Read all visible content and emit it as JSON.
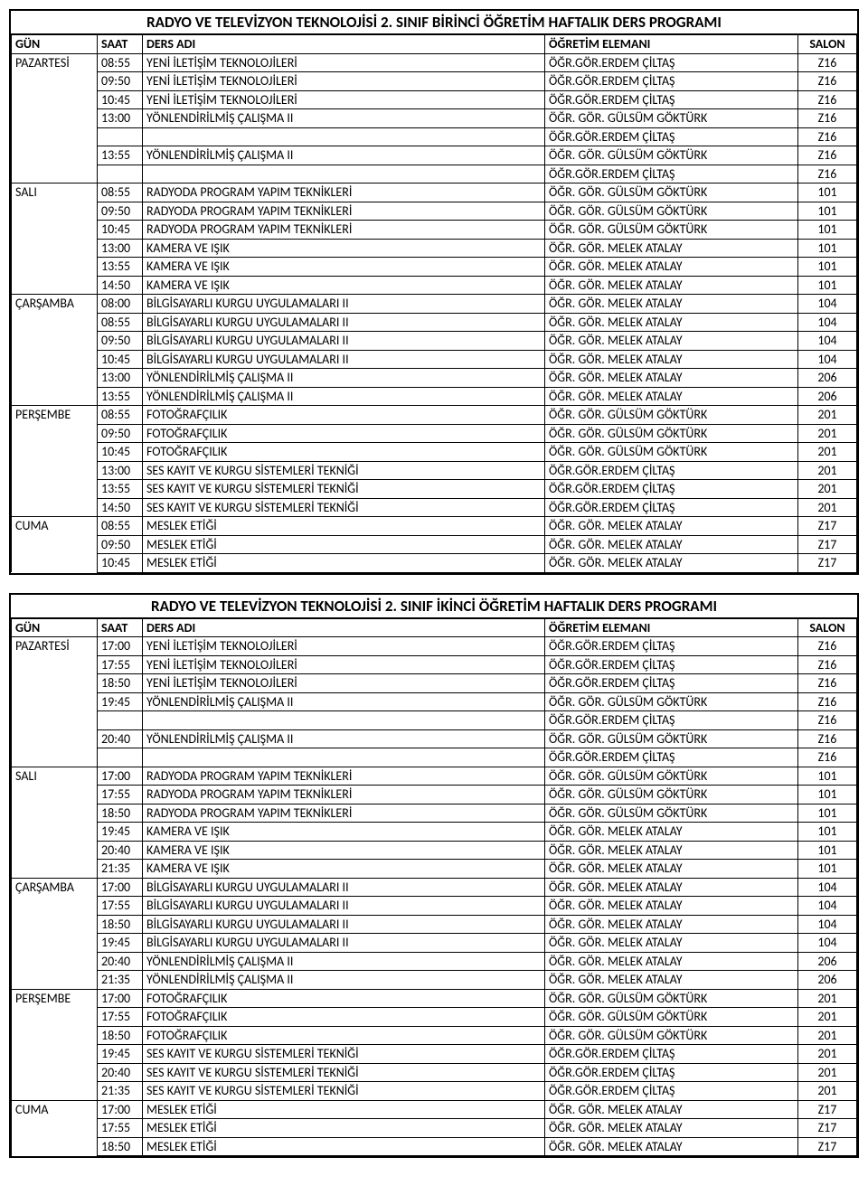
{
  "tables": [
    {
      "title": "RADYO VE TELEVİZYON TEKNOLOJİSİ 2. SINIF BİRİNCİ ÖĞRETİM HAFTALIK DERS PROGRAMI",
      "columns": [
        "GÜN",
        "SAAT",
        "DERS ADI",
        "ÖĞRETİM ELEMANI",
        "SALON"
      ],
      "rows": [
        {
          "gun": "PAZARTESİ",
          "saat": "08:55",
          "ders": "YENİ İLETİŞİM TEKNOLOJİLERİ",
          "ogr": "ÖĞR.GÖR.ERDEM ÇİLTAŞ",
          "salon": "Z16"
        },
        {
          "gun": "",
          "saat": "09:50",
          "ders": "YENİ İLETİŞİM TEKNOLOJİLERİ",
          "ogr": "ÖĞR.GÖR.ERDEM ÇİLTAŞ",
          "salon": "Z16"
        },
        {
          "gun": "",
          "saat": "10:45",
          "ders": "YENİ İLETİŞİM TEKNOLOJİLERİ",
          "ogr": "ÖĞR.GÖR.ERDEM ÇİLTAŞ",
          "salon": "Z16"
        },
        {
          "gun": "",
          "saat": "13:00",
          "ders": "YÖNLENDİRİLMİŞ ÇALIŞMA II",
          "ogr": "ÖĞR. GÖR. GÜLSÜM GÖKTÜRK",
          "salon": "Z16"
        },
        {
          "gun": "",
          "saat": "",
          "ders": "",
          "ogr": "ÖĞR.GÖR.ERDEM ÇİLTAŞ",
          "salon": "Z16"
        },
        {
          "gun": "",
          "saat": "13:55",
          "ders": "YÖNLENDİRİLMİŞ ÇALIŞMA II",
          "ogr": "ÖĞR. GÖR. GÜLSÜM GÖKTÜRK",
          "salon": "Z16"
        },
        {
          "gun": "",
          "saat": "",
          "ders": "",
          "ogr": "ÖĞR.GÖR.ERDEM ÇİLTAŞ",
          "salon": "Z16"
        },
        {
          "gun": "SALI",
          "saat": "08:55",
          "ders": "RADYODA PROGRAM YAPIM TEKNİKLERİ",
          "ogr": "ÖĞR. GÖR. GÜLSÜM GÖKTÜRK",
          "salon": "101"
        },
        {
          "gun": "",
          "saat": "09:50",
          "ders": "RADYODA PROGRAM YAPIM TEKNİKLERİ",
          "ogr": "ÖĞR. GÖR. GÜLSÜM GÖKTÜRK",
          "salon": "101"
        },
        {
          "gun": "",
          "saat": "10:45",
          "ders": "RADYODA PROGRAM YAPIM TEKNİKLERİ",
          "ogr": "ÖĞR. GÖR. GÜLSÜM GÖKTÜRK",
          "salon": "101"
        },
        {
          "gun": "",
          "saat": "13:00",
          "ders": "KAMERA VE IŞIK",
          "ogr": "ÖĞR. GÖR. MELEK ATALAY",
          "salon": "101"
        },
        {
          "gun": "",
          "saat": "13:55",
          "ders": "KAMERA VE IŞIK",
          "ogr": "ÖĞR. GÖR. MELEK ATALAY",
          "salon": "101"
        },
        {
          "gun": "",
          "saat": "14:50",
          "ders": "KAMERA VE IŞIK",
          "ogr": "ÖĞR. GÖR. MELEK ATALAY",
          "salon": "101"
        },
        {
          "gun": "ÇARŞAMBA",
          "saat": "08:00",
          "ders": "BİLGİSAYARLI KURGU UYGULAMALARI II",
          "ogr": "ÖĞR. GÖR. MELEK ATALAY",
          "salon": "104"
        },
        {
          "gun": "",
          "saat": "08:55",
          "ders": "BİLGİSAYARLI KURGU UYGULAMALARI II",
          "ogr": "ÖĞR. GÖR. MELEK ATALAY",
          "salon": "104"
        },
        {
          "gun": "",
          "saat": "09:50",
          "ders": "BİLGİSAYARLI KURGU UYGULAMALARI II",
          "ogr": "ÖĞR. GÖR. MELEK ATALAY",
          "salon": "104"
        },
        {
          "gun": "",
          "saat": "10:45",
          "ders": "BİLGİSAYARLI KURGU UYGULAMALARI II",
          "ogr": "ÖĞR. GÖR. MELEK ATALAY",
          "salon": "104"
        },
        {
          "gun": "",
          "saat": "13:00",
          "ders": "YÖNLENDİRİLMİŞ ÇALIŞMA II",
          "ogr": "ÖĞR. GÖR. MELEK ATALAY",
          "salon": "206"
        },
        {
          "gun": "",
          "saat": "13:55",
          "ders": "YÖNLENDİRİLMİŞ ÇALIŞMA II",
          "ogr": "ÖĞR. GÖR. MELEK ATALAY",
          "salon": "206"
        },
        {
          "gun": "PERŞEMBE",
          "saat": "08:55",
          "ders": "FOTOĞRAFÇILIK",
          "ogr": "ÖĞR. GÖR. GÜLSÜM GÖKTÜRK",
          "salon": "201"
        },
        {
          "gun": "",
          "saat": "09:50",
          "ders": "FOTOĞRAFÇILIK",
          "ogr": "ÖĞR. GÖR. GÜLSÜM GÖKTÜRK",
          "salon": "201"
        },
        {
          "gun": "",
          "saat": "10:45",
          "ders": "FOTOĞRAFÇILIK",
          "ogr": "ÖĞR. GÖR. GÜLSÜM GÖKTÜRK",
          "salon": "201"
        },
        {
          "gun": "",
          "saat": "13:00",
          "ders": "SES KAYIT VE KURGU SİSTEMLERİ TEKNİĞİ",
          "ogr": "ÖĞR.GÖR.ERDEM ÇİLTAŞ",
          "salon": "201"
        },
        {
          "gun": "",
          "saat": "13:55",
          "ders": "SES KAYIT VE KURGU SİSTEMLERİ TEKNİĞİ",
          "ogr": "ÖĞR.GÖR.ERDEM ÇİLTAŞ",
          "salon": "201"
        },
        {
          "gun": "",
          "saat": "14:50",
          "ders": "SES KAYIT VE KURGU SİSTEMLERİ TEKNİĞİ",
          "ogr": "ÖĞR.GÖR.ERDEM ÇİLTAŞ",
          "salon": "201"
        },
        {
          "gun": "CUMA",
          "saat": "08:55",
          "ders": "MESLEK ETİĞİ",
          "ogr": "ÖĞR. GÖR. MELEK ATALAY",
          "salon": "Z17"
        },
        {
          "gun": "",
          "saat": "09:50",
          "ders": "MESLEK ETİĞİ",
          "ogr": "ÖĞR. GÖR. MELEK ATALAY",
          "salon": "Z17"
        },
        {
          "gun": "",
          "saat": "10:45",
          "ders": "MESLEK ETİĞİ",
          "ogr": "ÖĞR. GÖR. MELEK ATALAY",
          "salon": "Z17"
        }
      ]
    },
    {
      "title": "RADYO VE TELEVİZYON TEKNOLOJİSİ 2. SINIF İKİNCİ ÖĞRETİM HAFTALIK DERS PROGRAMI",
      "columns": [
        "GÜN",
        "SAAT",
        "DERS ADI",
        "ÖĞRETİM ELEMANI",
        "SALON"
      ],
      "rows": [
        {
          "gun": "PAZARTESİ",
          "saat": "17:00",
          "ders": "YENİ İLETİŞİM TEKNOLOJİLERİ",
          "ogr": "ÖĞR.GÖR.ERDEM ÇİLTAŞ",
          "salon": "Z16"
        },
        {
          "gun": "",
          "saat": "17:55",
          "ders": "YENİ İLETİŞİM TEKNOLOJİLERİ",
          "ogr": "ÖĞR.GÖR.ERDEM ÇİLTAŞ",
          "salon": "Z16"
        },
        {
          "gun": "",
          "saat": "18:50",
          "ders": "YENİ İLETİŞİM TEKNOLOJİLERİ",
          "ogr": "ÖĞR.GÖR.ERDEM ÇİLTAŞ",
          "salon": "Z16"
        },
        {
          "gun": "",
          "saat": "19:45",
          "ders": "YÖNLENDİRİLMİŞ ÇALIŞMA II",
          "ogr": "ÖĞR. GÖR. GÜLSÜM GÖKTÜRK",
          "salon": "Z16"
        },
        {
          "gun": "",
          "saat": "",
          "ders": "",
          "ogr": "ÖĞR.GÖR.ERDEM ÇİLTAŞ",
          "salon": "Z16"
        },
        {
          "gun": "",
          "saat": "20:40",
          "ders": "YÖNLENDİRİLMİŞ ÇALIŞMA II",
          "ogr": "ÖĞR. GÖR. GÜLSÜM GÖKTÜRK",
          "salon": "Z16"
        },
        {
          "gun": "",
          "saat": "",
          "ders": "",
          "ogr": "ÖĞR.GÖR.ERDEM ÇİLTAŞ",
          "salon": "Z16"
        },
        {
          "gun": "SALI",
          "saat": "17:00",
          "ders": "RADYODA PROGRAM YAPIM TEKNİKLERİ",
          "ogr": "ÖĞR. GÖR. GÜLSÜM GÖKTÜRK",
          "salon": "101"
        },
        {
          "gun": "",
          "saat": "17:55",
          "ders": "RADYODA PROGRAM YAPIM TEKNİKLERİ",
          "ogr": "ÖĞR. GÖR. GÜLSÜM GÖKTÜRK",
          "salon": "101"
        },
        {
          "gun": "",
          "saat": "18:50",
          "ders": "RADYODA PROGRAM YAPIM TEKNİKLERİ",
          "ogr": "ÖĞR. GÖR. GÜLSÜM GÖKTÜRK",
          "salon": "101"
        },
        {
          "gun": "",
          "saat": "19:45",
          "ders": "KAMERA VE IŞIK",
          "ogr": "ÖĞR. GÖR. MELEK ATALAY",
          "salon": "101"
        },
        {
          "gun": "",
          "saat": "20:40",
          "ders": "KAMERA VE IŞIK",
          "ogr": "ÖĞR. GÖR. MELEK ATALAY",
          "salon": "101"
        },
        {
          "gun": "",
          "saat": "21:35",
          "ders": "KAMERA VE IŞIK",
          "ogr": "ÖĞR. GÖR. MELEK ATALAY",
          "salon": "101"
        },
        {
          "gun": "ÇARŞAMBA",
          "saat": "17:00",
          "ders": "BİLGİSAYARLI KURGU UYGULAMALARI II",
          "ogr": "ÖĞR. GÖR. MELEK ATALAY",
          "salon": "104"
        },
        {
          "gun": "",
          "saat": "17:55",
          "ders": "BİLGİSAYARLI KURGU UYGULAMALARI II",
          "ogr": "ÖĞR. GÖR. MELEK ATALAY",
          "salon": "104"
        },
        {
          "gun": "",
          "saat": "18:50",
          "ders": "BİLGİSAYARLI KURGU UYGULAMALARI II",
          "ogr": "ÖĞR. GÖR. MELEK ATALAY",
          "salon": "104"
        },
        {
          "gun": "",
          "saat": "19:45",
          "ders": "BİLGİSAYARLI KURGU UYGULAMALARI II",
          "ogr": "ÖĞR. GÖR. MELEK ATALAY",
          "salon": "104"
        },
        {
          "gun": "",
          "saat": "20:40",
          "ders": "YÖNLENDİRİLMİŞ ÇALIŞMA II",
          "ogr": "ÖĞR. GÖR. MELEK ATALAY",
          "salon": "206"
        },
        {
          "gun": "",
          "saat": "21:35",
          "ders": "YÖNLENDİRİLMİŞ ÇALIŞMA II",
          "ogr": "ÖĞR. GÖR. MELEK ATALAY",
          "salon": "206"
        },
        {
          "gun": "PERŞEMBE",
          "saat": "17:00",
          "ders": "FOTOĞRAFÇILIK",
          "ogr": "ÖĞR. GÖR. GÜLSÜM GÖKTÜRK",
          "salon": "201"
        },
        {
          "gun": "",
          "saat": "17:55",
          "ders": "FOTOĞRAFÇILIK",
          "ogr": "ÖĞR. GÖR. GÜLSÜM GÖKTÜRK",
          "salon": "201"
        },
        {
          "gun": "",
          "saat": "18:50",
          "ders": "FOTOĞRAFÇILIK",
          "ogr": "ÖĞR. GÖR. GÜLSÜM GÖKTÜRK",
          "salon": "201"
        },
        {
          "gun": "",
          "saat": "19:45",
          "ders": "SES KAYIT VE KURGU SİSTEMLERİ TEKNİĞİ",
          "ogr": "ÖĞR.GÖR.ERDEM ÇİLTAŞ",
          "salon": "201"
        },
        {
          "gun": "",
          "saat": "20:40",
          "ders": "SES KAYIT VE KURGU SİSTEMLERİ TEKNİĞİ",
          "ogr": "ÖĞR.GÖR.ERDEM ÇİLTAŞ",
          "salon": "201"
        },
        {
          "gun": "",
          "saat": "21:35",
          "ders": "SES KAYIT VE KURGU SİSTEMLERİ TEKNİĞİ",
          "ogr": "ÖĞR.GÖR.ERDEM ÇİLTAŞ",
          "salon": "201"
        },
        {
          "gun": "CUMA",
          "saat": "17:00",
          "ders": "MESLEK ETİĞİ",
          "ogr": "ÖĞR. GÖR. MELEK ATALAY",
          "salon": "Z17"
        },
        {
          "gun": "",
          "saat": "17:55",
          "ders": "MESLEK ETİĞİ",
          "ogr": "ÖĞR. GÖR. MELEK ATALAY",
          "salon": "Z17"
        },
        {
          "gun": "",
          "saat": "18:50",
          "ders": "MESLEK ETİĞİ",
          "ogr": "ÖĞR. GÖR. MELEK ATALAY",
          "salon": "Z17"
        }
      ]
    }
  ]
}
